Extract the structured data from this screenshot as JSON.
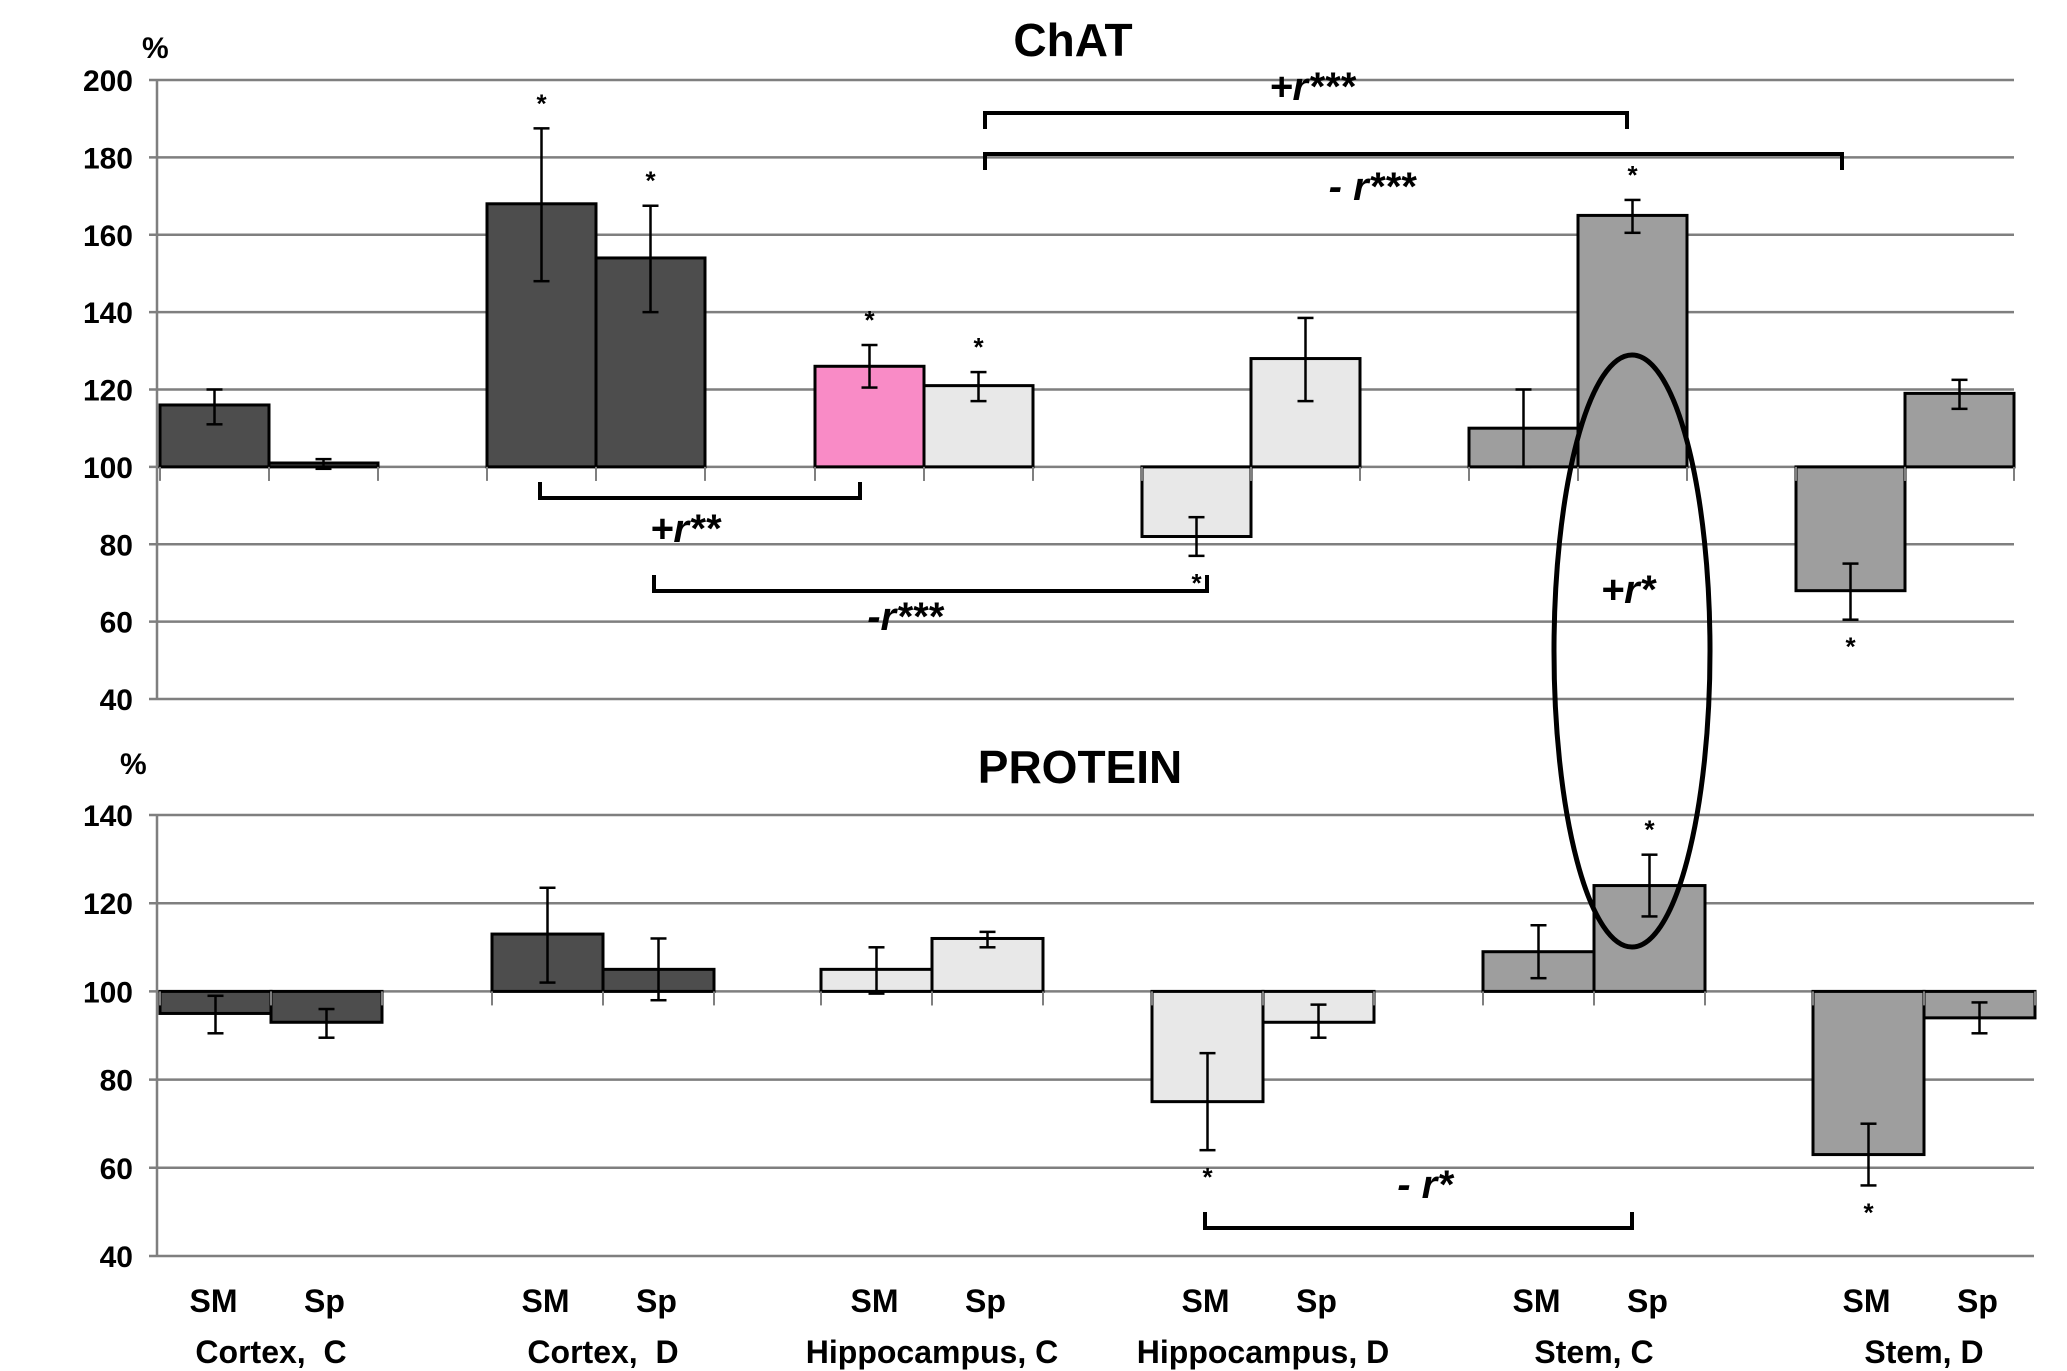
{
  "chart_data": [
    {
      "type": "bar",
      "title": "ChAT",
      "ylabel": "%",
      "ylim": [
        40,
        200
      ],
      "yticks": [
        200,
        180,
        160,
        140,
        120,
        100,
        80,
        60,
        40
      ],
      "baseline": 100,
      "grid": true,
      "groups": [
        "Cortex,  C",
        "Cortex,  D",
        "Hippocampus, C",
        "Hippocampus, D",
        "Stem, C",
        "Stem, D"
      ],
      "subcategories": [
        "SM",
        "Sp"
      ],
      "bars": [
        {
          "group": 0,
          "sub": "SM",
          "value": 116,
          "err": [
            111,
            120
          ],
          "color": "#4d4d4d",
          "sig": ""
        },
        {
          "group": 0,
          "sub": "Sp",
          "value": 101,
          "err": [
            99.5,
            102
          ],
          "color": "#4d4d4d",
          "sig": ""
        },
        {
          "group": 1,
          "sub": "SM",
          "value": 168,
          "err": [
            148,
            187.5
          ],
          "color": "#4d4d4d",
          "sig": "*"
        },
        {
          "group": 1,
          "sub": "Sp",
          "value": 154,
          "err": [
            140,
            167.5
          ],
          "color": "#4d4d4d",
          "sig": "*"
        },
        {
          "group": 2,
          "sub": "SM",
          "value": 126,
          "err": [
            120.5,
            131.5
          ],
          "color": "#f98bc6",
          "sig": "*"
        },
        {
          "group": 2,
          "sub": "Sp",
          "value": 121,
          "err": [
            117,
            124.5
          ],
          "color": "#e8e8e8",
          "sig": "*"
        },
        {
          "group": 3,
          "sub": "SM",
          "value": 82,
          "err": [
            77,
            87
          ],
          "color": "#e8e8e8",
          "sig": "*"
        },
        {
          "group": 3,
          "sub": "Sp",
          "value": 128,
          "err": [
            117,
            138.5
          ],
          "color": "#e8e8e8",
          "sig": ""
        },
        {
          "group": 4,
          "sub": "SM",
          "value": 110,
          "err": [
            100,
            120
          ],
          "color": "#9e9e9e",
          "sig": ""
        },
        {
          "group": 4,
          "sub": "Sp",
          "value": 165,
          "err": [
            160.5,
            169
          ],
          "color": "#9e9e9e",
          "sig": "*"
        },
        {
          "group": 5,
          "sub": "SM",
          "value": 68,
          "err": [
            60.5,
            75
          ],
          "color": "#9e9e9e",
          "sig": "*"
        },
        {
          "group": 5,
          "sub": "Sp",
          "value": 119,
          "err": [
            115,
            122.5
          ],
          "color": "#9e9e9e",
          "sig": ""
        }
      ],
      "annotations": [
        {
          "label": "+r**",
          "from": "Cortex, D SM",
          "to": "Hippocampus, C SM"
        },
        {
          "label": "-r***",
          "from": "Cortex, D Sp",
          "to": "Hippocampus, D SM"
        },
        {
          "label": "+r***",
          "from": "Hippocampus, C Sp",
          "to": "Stem, C Sp"
        },
        {
          "label": "- r***",
          "from": "Hippocampus, C Sp",
          "to": "Stem, D SM"
        }
      ]
    },
    {
      "type": "bar",
      "title": "PROTEIN",
      "ylabel": "%",
      "ylim": [
        40,
        140
      ],
      "yticks": [
        140,
        120,
        100,
        80,
        60,
        40
      ],
      "baseline": 100,
      "grid": true,
      "groups": [
        "Cortex,  C",
        "Cortex,  D",
        "Hippocampus, C",
        "Hippocampus, D",
        "Stem, C",
        "Stem, D"
      ],
      "subcategories": [
        "SM",
        "Sp"
      ],
      "bars": [
        {
          "group": 0,
          "sub": "SM",
          "value": 95,
          "err": [
            90.5,
            99
          ],
          "color": "#4d4d4d",
          "sig": ""
        },
        {
          "group": 0,
          "sub": "Sp",
          "value": 93,
          "err": [
            89.5,
            96
          ],
          "color": "#4d4d4d",
          "sig": ""
        },
        {
          "group": 1,
          "sub": "SM",
          "value": 113,
          "err": [
            102,
            123.5
          ],
          "color": "#4d4d4d",
          "sig": ""
        },
        {
          "group": 1,
          "sub": "Sp",
          "value": 105,
          "err": [
            98,
            112
          ],
          "color": "#4d4d4d",
          "sig": ""
        },
        {
          "group": 2,
          "sub": "SM",
          "value": 105,
          "err": [
            99.5,
            110
          ],
          "color": "#e8e8e8",
          "sig": ""
        },
        {
          "group": 2,
          "sub": "Sp",
          "value": 112,
          "err": [
            110,
            113.5
          ],
          "color": "#e8e8e8",
          "sig": ""
        },
        {
          "group": 3,
          "sub": "SM",
          "value": 75,
          "err": [
            64,
            86
          ],
          "color": "#e8e8e8",
          "sig": "*"
        },
        {
          "group": 3,
          "sub": "Sp",
          "value": 93,
          "err": [
            89.5,
            97
          ],
          "color": "#e8e8e8",
          "sig": ""
        },
        {
          "group": 4,
          "sub": "SM",
          "value": 109,
          "err": [
            103,
            115
          ],
          "color": "#9e9e9e",
          "sig": ""
        },
        {
          "group": 4,
          "sub": "Sp",
          "value": 124,
          "err": [
            117,
            131
          ],
          "color": "#9e9e9e",
          "sig": "*"
        },
        {
          "group": 5,
          "sub": "SM",
          "value": 63,
          "err": [
            56,
            70
          ],
          "color": "#9e9e9e",
          "sig": "*"
        },
        {
          "group": 5,
          "sub": "Sp",
          "value": 94,
          "err": [
            90.5,
            97.5
          ],
          "color": "#9e9e9e",
          "sig": ""
        }
      ],
      "annotations": [
        {
          "label": "- r*",
          "from": "Hippocampus, D SM",
          "to": "Stem, C Sp"
        }
      ]
    }
  ],
  "cross_annotation": {
    "label": "+r*",
    "links": "ChAT Stem, C Sp with PROTEIN Stem, C Sp"
  }
}
